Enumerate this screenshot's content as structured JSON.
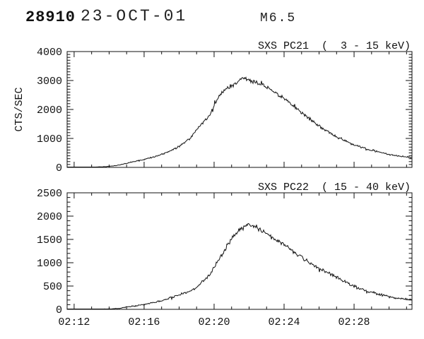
{
  "header": {
    "flare_number": "28910",
    "date": "23-OCT-01",
    "goes_class": "M6.5"
  },
  "colors": {
    "background": "#ffffff",
    "foreground": "#111111"
  },
  "chart_data": [
    {
      "type": "line",
      "title": "SXS PC21  (  3 - 15 keV)",
      "ylabel": "CTS/SEC",
      "ylim": [
        0,
        4000
      ],
      "yticks": [
        0,
        1000,
        2000,
        3000,
        4000
      ],
      "ytick_labels": [
        "0",
        "1000",
        "2000",
        "3000",
        "4000"
      ],
      "y_minor_interval": 100,
      "xlim_minutes_after_0200": [
        11.6,
        31.31
      ],
      "xticks_minutes": [
        12,
        16,
        20,
        24,
        28
      ],
      "xtick_labels": [
        "02:12",
        "02:16",
        "02:20",
        "02:24",
        "02:28"
      ],
      "x_minor_interval": 1,
      "show_x_labels": false,
      "grid": false,
      "series": {
        "name": "SXS PC21 (3-15 keV)",
        "noise_k": 1.6,
        "seed": 12345,
        "points": [
          [
            11.6,
            4
          ],
          [
            12.6,
            4
          ],
          [
            13.0,
            8
          ],
          [
            13.5,
            16
          ],
          [
            14.0,
            35
          ],
          [
            14.5,
            75
          ],
          [
            15.0,
            140
          ],
          [
            15.6,
            220
          ],
          [
            16.2,
            300
          ],
          [
            16.9,
            430
          ],
          [
            17.5,
            560
          ],
          [
            18.1,
            750
          ],
          [
            18.7,
            1050
          ],
          [
            19.1,
            1380
          ],
          [
            19.4,
            1570
          ],
          [
            19.7,
            1750
          ],
          [
            20.0,
            2120
          ],
          [
            20.4,
            2570
          ],
          [
            20.7,
            2700
          ],
          [
            21.1,
            2860
          ],
          [
            21.45,
            3020
          ],
          [
            21.7,
            3080
          ],
          [
            22.0,
            3010
          ],
          [
            22.4,
            2930
          ],
          [
            23.1,
            2750
          ],
          [
            24.0,
            2380
          ],
          [
            24.7,
            2050
          ],
          [
            25.9,
            1460
          ],
          [
            26.8,
            1120
          ],
          [
            28.0,
            780
          ],
          [
            28.8,
            625
          ],
          [
            30.0,
            450
          ],
          [
            30.8,
            375
          ],
          [
            31.31,
            330
          ]
        ]
      }
    },
    {
      "type": "line",
      "title": "SXS PC22  ( 15 - 40 keV)",
      "ylabel": "",
      "ylim": [
        0,
        2500
      ],
      "yticks": [
        0,
        500,
        1000,
        1500,
        2000,
        2500
      ],
      "ytick_labels": [
        "0",
        "500",
        "1000",
        "1500",
        "2000",
        "2500"
      ],
      "y_minor_interval": 100,
      "xlim_minutes_after_0200": [
        11.6,
        31.31
      ],
      "xticks_minutes": [
        12,
        16,
        20,
        24,
        28
      ],
      "xtick_labels": [
        "02:12",
        "02:16",
        "02:20",
        "02:24",
        "02:28"
      ],
      "x_minor_interval": 1,
      "show_x_labels": true,
      "grid": false,
      "series": {
        "name": "SXS PC22 (15-40 keV)",
        "noise_k": 1.6,
        "seed": 67890,
        "points": [
          [
            11.6,
            2
          ],
          [
            13.5,
            4
          ],
          [
            14.0,
            8
          ],
          [
            14.6,
            22
          ],
          [
            15.0,
            50
          ],
          [
            15.6,
            80
          ],
          [
            16.2,
            115
          ],
          [
            16.9,
            175
          ],
          [
            17.5,
            245
          ],
          [
            17.9,
            300
          ],
          [
            18.7,
            400
          ],
          [
            19.1,
            500
          ],
          [
            19.7,
            740
          ],
          [
            20.0,
            900
          ],
          [
            20.4,
            1150
          ],
          [
            20.8,
            1400
          ],
          [
            21.2,
            1600
          ],
          [
            21.5,
            1720
          ],
          [
            21.9,
            1800
          ],
          [
            22.3,
            1790
          ],
          [
            22.7,
            1700
          ],
          [
            23.1,
            1600
          ],
          [
            24.0,
            1390
          ],
          [
            24.7,
            1180
          ],
          [
            25.9,
            900
          ],
          [
            26.8,
            730
          ],
          [
            28.0,
            490
          ],
          [
            28.8,
            390
          ],
          [
            30.0,
            265
          ],
          [
            30.8,
            225
          ],
          [
            31.31,
            205
          ]
        ]
      }
    }
  ]
}
